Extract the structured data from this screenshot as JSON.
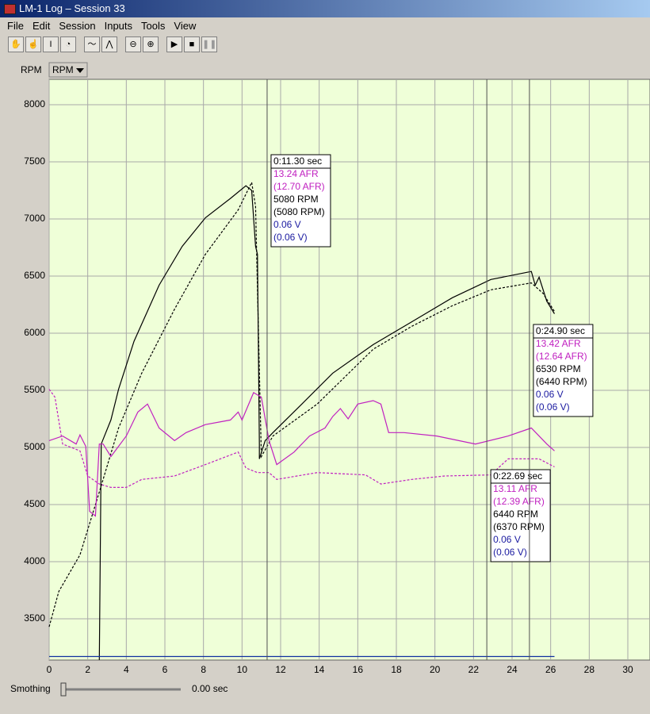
{
  "window": {
    "title": "LM-1 Log – Session 33",
    "menu": [
      "File",
      "Edit",
      "Session",
      "Inputs",
      "Tools",
      "View"
    ]
  },
  "selector": {
    "label": "RPM",
    "value": "RPM"
  },
  "chart_data": {
    "type": "line",
    "xlim": [
      0,
      31.15
    ],
    "ylim": [
      3139,
      8222
    ],
    "xticks": [
      0,
      2,
      4,
      6,
      8,
      10,
      12,
      14,
      16,
      18,
      20,
      22,
      24,
      26,
      28,
      30
    ],
    "yticks": [
      3500,
      4000,
      4500,
      5000,
      5500,
      6000,
      6500,
      7000,
      7500,
      8000
    ],
    "grid": true,
    "series": [
      {
        "color": "#000000",
        "style": "solid",
        "x": [
          2.6,
          2.7,
          3.2,
          3.6,
          4.4,
          5.7,
          6.9,
          8.1,
          9.4,
          10.2,
          10.5,
          10.7,
          10.8,
          10.9,
          10.9,
          11.2,
          11.6,
          13.1,
          14.7,
          16.8,
          18.8,
          20.9,
          22.9,
          25.0,
          25.2,
          25.4,
          25.8,
          26.2
        ],
        "values": [
          3140,
          5030,
          5240,
          5510,
          5930,
          6420,
          6760,
          7010,
          7180,
          7290,
          7250,
          6760,
          6690,
          5030,
          4900,
          5060,
          5130,
          5380,
          5650,
          5900,
          6100,
          6310,
          6470,
          6540,
          6420,
          6490,
          6280,
          6170
        ]
      },
      {
        "color": "#000000",
        "style": "dashed",
        "x": [
          0,
          0.5,
          1.6,
          2.6,
          3.6,
          4.8,
          6.5,
          8.1,
          9.8,
          10.5,
          10.7,
          11.0,
          11.6,
          13.9,
          16.8,
          18.8,
          20.9,
          22.9,
          25.0,
          25.6,
          26.2
        ],
        "values": [
          3430,
          3740,
          4060,
          4610,
          5170,
          5650,
          6210,
          6690,
          7080,
          7320,
          7110,
          4920,
          5100,
          5380,
          5860,
          6060,
          6240,
          6380,
          6440,
          6350,
          6190
        ]
      },
      {
        "color": "#c020c0",
        "style": "solid",
        "x": [
          0,
          0.7,
          1.4,
          1.6,
          1.9,
          2.1,
          2.4,
          2.6,
          2.8,
          3.2,
          4.0,
          4.6,
          5.1,
          5.7,
          6.5,
          7.1,
          8.1,
          9.4,
          9.8,
          10.0,
          10.6,
          11.0,
          11.4,
          11.8,
          12.7,
          13.5,
          14.3,
          14.7,
          15.1,
          15.5,
          16.0,
          16.8,
          17.2,
          17.6,
          18.4,
          20.1,
          22.1,
          23.8,
          25.0,
          25.8,
          26.2
        ],
        "values": [
          5060,
          5100,
          5030,
          5110,
          5010,
          4440,
          4400,
          5030,
          5030,
          4920,
          5100,
          5310,
          5380,
          5170,
          5060,
          5130,
          5200,
          5240,
          5310,
          5240,
          5480,
          5440,
          5060,
          4850,
          4960,
          5100,
          5170,
          5270,
          5340,
          5250,
          5380,
          5410,
          5380,
          5130,
          5130,
          5100,
          5030,
          5100,
          5170,
          5030,
          4970
        ]
      },
      {
        "color": "#c020c0",
        "style": "dashed",
        "x": [
          0,
          0.3,
          0.7,
          1.6,
          2.0,
          2.6,
          3.2,
          4.0,
          4.8,
          6.5,
          8.1,
          9.8,
          10.2,
          10.8,
          11.4,
          11.8,
          13.9,
          16.4,
          17.2,
          18.8,
          20.5,
          22.9,
          23.8,
          25.4,
          26.2
        ],
        "values": [
          5510,
          5440,
          5030,
          4970,
          4750,
          4680,
          4650,
          4650,
          4720,
          4750,
          4850,
          4960,
          4820,
          4780,
          4780,
          4720,
          4780,
          4760,
          4680,
          4720,
          4750,
          4760,
          4900,
          4900,
          4830
        ]
      },
      {
        "color": "#1030a0",
        "style": "solid",
        "x": [
          0,
          26.2
        ],
        "values": [
          3170,
          3170
        ]
      }
    ],
    "cursors": [
      {
        "x": 11.3,
        "lines": [
          "0:11.30 sec",
          "13.24 AFR",
          "(12.70 AFR)",
          "5080 RPM",
          "(5080 RPM)",
          "0.06 V",
          "(0.06 V)"
        ]
      },
      {
        "x": 22.69,
        "lines": [
          "0:22.69 sec",
          "13.11 AFR",
          "(12.39 AFR)",
          "6440 RPM",
          "(6370 RPM)",
          "0.06 V",
          "(0.06 V)"
        ]
      },
      {
        "x": 24.9,
        "lines": [
          "0:24.90 sec",
          "13.42 AFR",
          "(12.64 AFR)",
          "6530 RPM",
          "(6440 RPM)",
          "0.06 V",
          "(0.06 V)"
        ]
      }
    ]
  },
  "smoothing": {
    "label": "Smothing",
    "value": "0.00 sec"
  }
}
